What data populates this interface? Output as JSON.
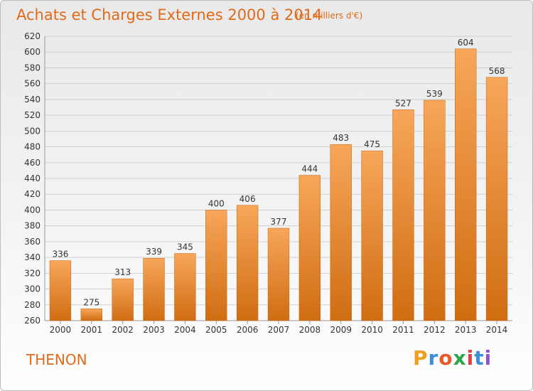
{
  "header": {
    "title": "Achats et Charges Externes 2000 à 2014",
    "subtitle": "(en milliers d'€)"
  },
  "footer": {
    "commune": "THENON",
    "logo_letters": [
      "P",
      "r",
      "o",
      "x",
      "i",
      "t",
      "i"
    ],
    "logo_colors": [
      "#f0a020",
      "#3a8fd8",
      "#e85a2a",
      "#2aa84a",
      "#e04040",
      "#3a8fd8",
      "#8c56c8"
    ]
  },
  "colors": {
    "bar_top": "#f7a65a",
    "bar_bottom": "#d06d12",
    "accent": "#e06a1a",
    "grid": "#cfcfcf",
    "axis_text": "#333333"
  },
  "chart_data": {
    "type": "bar",
    "title": "Achats et Charges Externes 2000 à 2014",
    "subtitle": "(en milliers d'€)",
    "xlabel": "",
    "ylabel": "",
    "ylim": [
      260,
      620
    ],
    "ytick_step": 20,
    "grid": true,
    "categories": [
      "2000",
      "2001",
      "2002",
      "2003",
      "2004",
      "2005",
      "2006",
      "2007",
      "2008",
      "2009",
      "2010",
      "2011",
      "2012",
      "2013",
      "2014"
    ],
    "values": [
      336,
      275,
      313,
      339,
      345,
      400,
      406,
      377,
      444,
      483,
      475,
      527,
      539,
      604,
      568
    ]
  }
}
